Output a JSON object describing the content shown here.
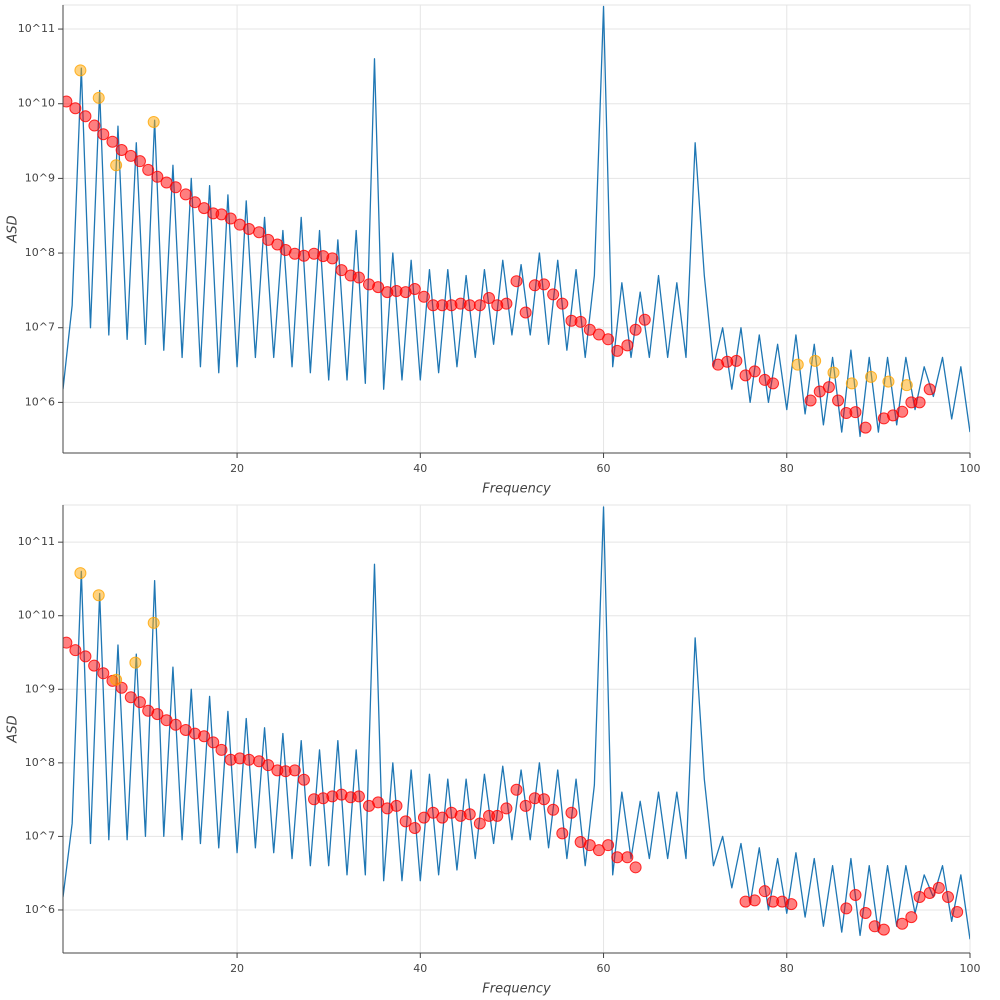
{
  "chart_data": [
    {
      "type": "line",
      "xlabel": "Frequency",
      "ylabel": "ASD",
      "log_y": true,
      "grid": true,
      "xlim": [
        1,
        100
      ],
      "xticks": [
        20,
        40,
        60,
        80,
        100
      ],
      "ylim": [
        210000,
        210000000000
      ],
      "yticks": [
        {
          "value": 1000000,
          "label": "10^6"
        },
        {
          "value": 10000000,
          "label": "10^7"
        },
        {
          "value": 100000000,
          "label": "10^8"
        },
        {
          "value": 1000000000,
          "label": "10^9"
        },
        {
          "value": 10000000000,
          "label": "10^10"
        },
        {
          "value": 100000000000,
          "label": "10^11"
        }
      ],
      "series": [
        {
          "type": "line",
          "color": "#1f77b4",
          "x": [
            1,
            2,
            3,
            4,
            5,
            6,
            7,
            8,
            9,
            10,
            11,
            12,
            13,
            14,
            15,
            16,
            17,
            18,
            19,
            20,
            21,
            22,
            23,
            24,
            25,
            26,
            27,
            28,
            29,
            30,
            31,
            32,
            33,
            34,
            35,
            36,
            37,
            38,
            39,
            40,
            41,
            42,
            43,
            44,
            45,
            46,
            47,
            48,
            49,
            50,
            51,
            52,
            53,
            54,
            55,
            56,
            57,
            58,
            59,
            60,
            61,
            62,
            63,
            64,
            65,
            66,
            67,
            68,
            69,
            70,
            71,
            72,
            73,
            74,
            75,
            76,
            77,
            78,
            79,
            80,
            81,
            82,
            83,
            84,
            85,
            86,
            87,
            88,
            89,
            90,
            91,
            92,
            93,
            94,
            95,
            96,
            97,
            98,
            99,
            100
          ],
          "values": [
            1500000,
            20000000,
            30000000000,
            10000000,
            15000000000,
            8000000,
            5000000000,
            7000000,
            3000000000,
            6000000,
            6000000000,
            5000000,
            1500000000,
            4000000,
            1000000000,
            3000000,
            800000000,
            2500000,
            600000000,
            3000000,
            500000000,
            4000000,
            300000000,
            4000000,
            200000000,
            3000000,
            300000000,
            2500000,
            200000000,
            2000000,
            150000000,
            2000000,
            200000000,
            1800000,
            40000000000,
            1500000,
            100000000,
            2000000,
            80000000,
            2000000,
            60000000,
            2500000,
            60000000,
            3000000,
            50000000,
            4000000,
            60000000,
            6000000,
            80000000,
            8000000,
            70000000,
            8000000,
            100000000,
            6000000,
            80000000,
            5000000,
            60000000,
            4000000,
            50000000,
            200000000000,
            3000000,
            40000000,
            4000000,
            30000000,
            4000000,
            50000000,
            4000000,
            40000000,
            4000000,
            3000000000,
            50000000,
            3000000,
            10000000,
            1500000,
            10000000,
            1000000,
            8000000,
            1000000,
            6000000,
            800000,
            8000000,
            700000,
            6000000,
            500000,
            4000000,
            400000,
            5000000,
            350000,
            4000000,
            400000,
            4000000,
            500000,
            4000000,
            800000,
            3000000,
            1200000,
            4000000,
            600000,
            3000000,
            400000
          ]
        },
        {
          "type": "scatter",
          "color": "#ff0000",
          "x": [
            1.37,
            2.35,
            3.45,
            4.43,
            5.4,
            6.4,
            7.4,
            8.4,
            9.4,
            10.3,
            11.3,
            12.3,
            13.3,
            14.4,
            15.4,
            16.4,
            17.4,
            18.3,
            19.3,
            20.3,
            21.3,
            22.4,
            23.4,
            24.4,
            25.3,
            26.3,
            27.3,
            28.4,
            29.4,
            30.4,
            31.4,
            32.4,
            33.3,
            34.4,
            35.4,
            36.4,
            37.4,
            38.4,
            39.4,
            40.4,
            41.4,
            42.4,
            43.4,
            44.4,
            45.4,
            46.5,
            47.5,
            48.4,
            49.4,
            50.5,
            51.5,
            52.5,
            53.5,
            54.5,
            55.5,
            56.5,
            57.5,
            58.5,
            59.5,
            60.5,
            61.5,
            62.6,
            63.5,
            64.5,
            72.5,
            73.5,
            74.5,
            75.5,
            76.5,
            77.6,
            78.5,
            82.6,
            83.6,
            84.6,
            85.6,
            86.5,
            87.5,
            88.6,
            90.6,
            91.6,
            92.6,
            93.6,
            94.5,
            95.6
          ],
          "values": [
            10700000000,
            8700000000,
            6800000000,
            5100000000,
            3900000000,
            3100000000,
            2400000000,
            2000000000,
            1700000000,
            1300000000,
            1050000000,
            880000000,
            760000000,
            610000000,
            480000000,
            400000000,
            340000000,
            330000000,
            290000000,
            240000000,
            210000000,
            190000000,
            150000000,
            130000000,
            110000000,
            98000000,
            92000000,
            98000000,
            91000000,
            85000000,
            59000000,
            50000000,
            47000000,
            38000000,
            35000000,
            30000000,
            31000000,
            30000000,
            33000000,
            26000000,
            20000000,
            20000000,
            20000000,
            21000000,
            20000000,
            20000000,
            25000000,
            20000000,
            21000000,
            42000000,
            16000000,
            37000000,
            38000000,
            28000000,
            21000000,
            12400000,
            12000000,
            9400000,
            8100000,
            7000000,
            4900000,
            5800000,
            9400000,
            12800000,
            3200000,
            3500000,
            3600000,
            2300000,
            2600000,
            2000000,
            1800000,
            1060000,
            1400000,
            1600000,
            1060000,
            720000,
            740000,
            460000,
            610000,
            670000,
            750000,
            1000000,
            1000000,
            1500000
          ]
        },
        {
          "type": "scatter",
          "color": "#ffa500",
          "x": [
            2.9,
            4.9,
            6.8,
            10.9,
            81.2,
            83.1,
            85.1,
            87.1,
            89.2,
            91.1,
            93.1
          ],
          "values": [
            28000000000,
            12000000000,
            1500000000,
            5700000000,
            3200000,
            3600000,
            2500000,
            1800000,
            2200000,
            1900000,
            1700000
          ]
        }
      ]
    },
    {
      "type": "line",
      "xlabel": "Frequency",
      "ylabel": "ASD",
      "log_y": true,
      "grid": true,
      "xlim": [
        1,
        100
      ],
      "xticks": [
        20,
        40,
        60,
        80,
        100
      ],
      "ylim": [
        260000,
        320000000000
      ],
      "yticks": [
        {
          "value": 1000000,
          "label": "10^6"
        },
        {
          "value": 10000000,
          "label": "10^7"
        },
        {
          "value": 100000000,
          "label": "10^8"
        },
        {
          "value": 1000000000,
          "label": "10^9"
        },
        {
          "value": 10000000000,
          "label": "10^10"
        },
        {
          "value": 100000000000,
          "label": "10^11"
        }
      ],
      "series": [
        {
          "type": "line",
          "color": "#1f77b4",
          "x": [
            1,
            2,
            3,
            4,
            5,
            6,
            7,
            8,
            9,
            10,
            11,
            12,
            13,
            14,
            15,
            16,
            17,
            18,
            19,
            20,
            21,
            22,
            23,
            24,
            25,
            26,
            27,
            28,
            29,
            30,
            31,
            32,
            33,
            34,
            35,
            36,
            37,
            38,
            39,
            40,
            41,
            42,
            43,
            44,
            45,
            46,
            47,
            48,
            49,
            50,
            51,
            52,
            53,
            54,
            55,
            56,
            57,
            58,
            59,
            60,
            61,
            62,
            63,
            64,
            65,
            66,
            67,
            68,
            69,
            70,
            71,
            72,
            73,
            74,
            75,
            76,
            77,
            78,
            79,
            80,
            81,
            82,
            83,
            84,
            85,
            86,
            87,
            88,
            89,
            90,
            91,
            92,
            93,
            94,
            95,
            96,
            97,
            98,
            99,
            100
          ],
          "values": [
            1500000,
            15000000,
            40000000000,
            8000000,
            20000000000,
            9000000,
            4000000000,
            9000000,
            3000000000,
            10000000,
            30000000000,
            10000000,
            2000000000,
            9000000,
            1000000000,
            8000000,
            800000000,
            7000000,
            500000000,
            6000000,
            400000000,
            7000000,
            300000000,
            6000000,
            250000000,
            5000000,
            200000000,
            4000000,
            150000000,
            4000000,
            200000000,
            3000000,
            150000000,
            3000000,
            50000000000,
            2500000,
            100000000,
            2500000,
            80000000,
            2500000,
            70000000,
            3000000,
            60000000,
            3500000,
            60000000,
            5000000,
            70000000,
            8000000,
            90000000,
            9000000,
            80000000,
            9000000,
            100000000,
            7000000,
            80000000,
            5000000,
            60000000,
            4000000,
            50000000,
            300000000000,
            3000000,
            40000000,
            5000000,
            30000000,
            5000000,
            40000000,
            5000000,
            40000000,
            5000000,
            5000000000,
            60000000,
            4000000,
            10000000,
            2000000,
            8000000,
            1200000,
            7000000,
            1000000,
            5000000,
            900000,
            6000000,
            800000,
            5000000,
            600000,
            4000000,
            500000,
            5000000,
            450000,
            4000000,
            500000,
            4000000,
            600000,
            4000000,
            900000,
            3000000,
            1500000,
            4000000,
            700000,
            3000000,
            400000
          ]
        },
        {
          "type": "scatter",
          "color": "#ff0000",
          "x": [
            1.37,
            2.35,
            3.45,
            4.4,
            5.4,
            6.4,
            7.4,
            8.4,
            9.4,
            10.3,
            11.3,
            12.3,
            13.3,
            14.4,
            15.4,
            16.4,
            17.4,
            18.3,
            19.3,
            20.3,
            21.3,
            22.4,
            23.4,
            24.4,
            25.3,
            26.3,
            27.3,
            28.4,
            29.4,
            30.4,
            31.4,
            32.4,
            33.3,
            34.4,
            35.4,
            36.4,
            37.4,
            38.4,
            39.4,
            40.4,
            41.4,
            42.4,
            43.4,
            44.4,
            45.4,
            46.5,
            47.5,
            48.4,
            49.4,
            50.5,
            51.5,
            52.5,
            53.5,
            54.5,
            55.5,
            56.5,
            57.5,
            58.5,
            59.5,
            60.5,
            61.5,
            62.6,
            63.5,
            75.5,
            76.5,
            77.6,
            78.5,
            79.5,
            80.5,
            86.5,
            87.5,
            88.6,
            89.6,
            90.6,
            92.6,
            93.6,
            94.5,
            95.6,
            96.6,
            97.6,
            98.6
          ],
          "values": [
            4300000000,
            3400000000,
            2800000000,
            2100000000,
            1650000000,
            1300000000,
            1050000000,
            780000000,
            670000000,
            510000000,
            460000000,
            380000000,
            330000000,
            280000000,
            250000000,
            230000000,
            190000000,
            150000000,
            110000000,
            115000000,
            110000000,
            105000000,
            93000000,
            79000000,
            77000000,
            79000000,
            59000000,
            32000000,
            33000000,
            35000000,
            37000000,
            34000000,
            35000000,
            26000000,
            29000000,
            24000000,
            26000000,
            16000000,
            13000000,
            18000000,
            21000000,
            18000000,
            21000000,
            19000000,
            20000000,
            15000000,
            19000000,
            19000000,
            24000000,
            43000000,
            26000000,
            33000000,
            32000000,
            23000000,
            11000000,
            21000000,
            8400000,
            7600000,
            6500000,
            7600000,
            5200000,
            5200000,
            3800000,
            1300000,
            1350000,
            1800000,
            1300000,
            1300000,
            1200000,
            1050000,
            1600000,
            910000,
            600000,
            540000,
            650000,
            800000,
            1500000,
            1700000,
            2000000,
            1500000,
            940000
          ]
        },
        {
          "type": "scatter",
          "color": "#ffa500",
          "x": [
            2.9,
            4.9,
            6.8,
            8.9,
            10.9
          ],
          "values": [
            38000000000,
            19000000000,
            1350000000,
            2300000000,
            8000000000
          ]
        }
      ]
    }
  ]
}
